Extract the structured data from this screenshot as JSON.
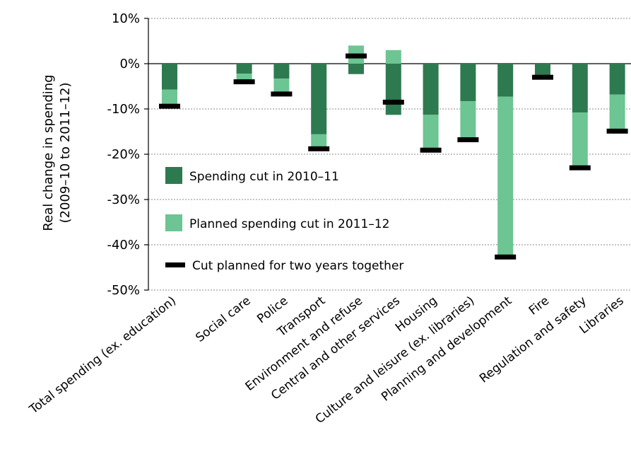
{
  "chart_data": {
    "type": "bar",
    "ylabel_line1": "Real change in spending",
    "ylabel_line2": "(2009–10 to 2011–12)",
    "ylim": [
      -50,
      10
    ],
    "yticks": [
      10,
      0,
      -10,
      -20,
      -30,
      -40,
      -50
    ],
    "ytick_labels": [
      "10%",
      "0%",
      "-10%",
      "-20%",
      "-30%",
      "-40%",
      "-50%"
    ],
    "grid": true,
    "legend_position": "inside-left",
    "categories": [
      "Total spending (ex. education)",
      "Social care",
      "Police",
      "Transport",
      "Environment and refuse",
      "Central and other services",
      "Housing",
      "Culture and leisure (ex. libraries)",
      "Planning and development",
      "Fire",
      "Regulation and safety",
      "Libraries"
    ],
    "series": [
      {
        "name": "Spending cut in 2010–11",
        "color": "#2e7a50",
        "values": [
          -5.7,
          -2.2,
          -3.3,
          -15.6,
          -2.3,
          -11.3,
          -11.3,
          -8.3,
          -7.3,
          -2.7,
          -10.8,
          -6.8
        ]
      },
      {
        "name": "Planned spending cut in 2011–12",
        "color": "#6cc592",
        "values": [
          -3.6,
          -1.8,
          -3.3,
          -3.0,
          4.0,
          3.0,
          -7.7,
          -8.3,
          -35.3,
          0,
          -12.1,
          -7.7
        ]
      },
      {
        "name": "Cut planned for two years together",
        "color": "#000000",
        "values": [
          -9.4,
          -4.0,
          -6.7,
          -18.8,
          1.7,
          -8.5,
          -19.1,
          -16.8,
          -42.7,
          -3.0,
          -23.0,
          -14.9
        ]
      }
    ]
  }
}
